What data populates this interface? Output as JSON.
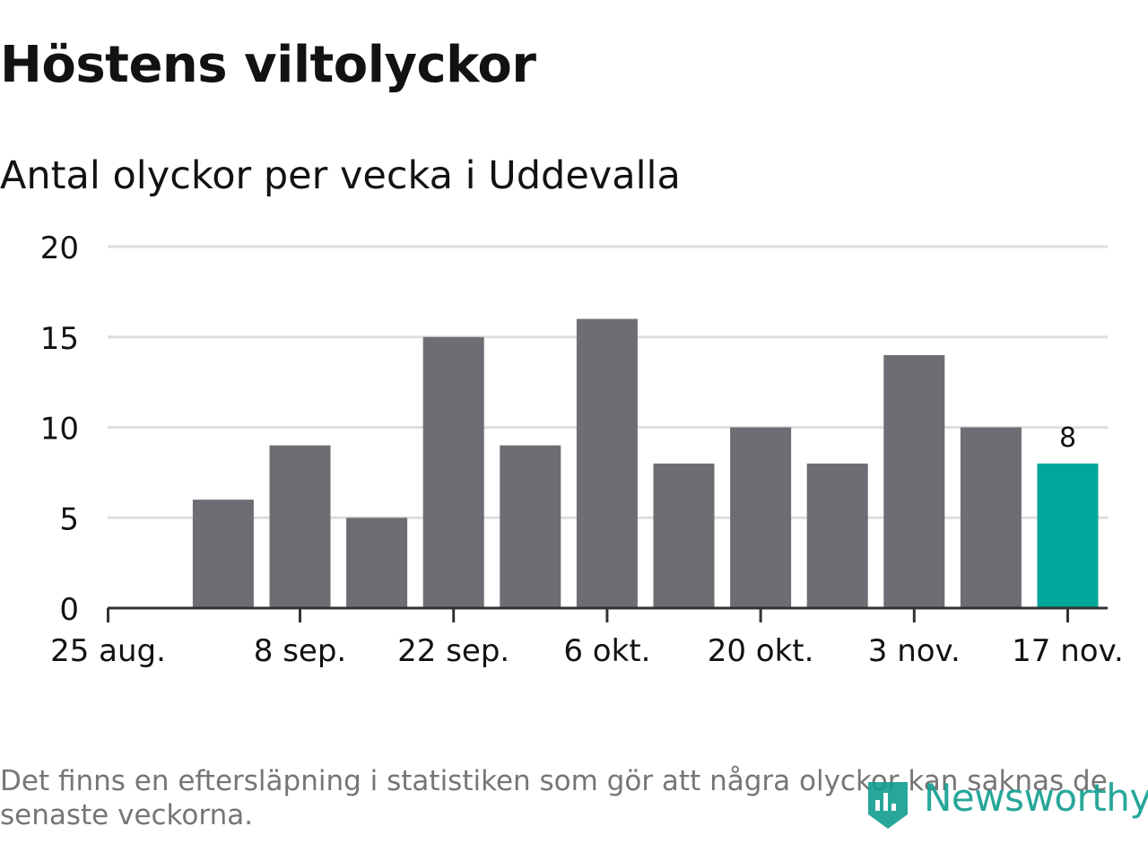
{
  "title": "Höstens viltolyckor",
  "subtitle": "Antal olyckor per vecka i Uddevalla",
  "chart_data": {
    "type": "bar",
    "categories": [
      "25 aug.",
      "1 sep.",
      "8 sep.",
      "15 sep.",
      "22 sep.",
      "29 sep.",
      "6 okt.",
      "13 okt.",
      "20 okt.",
      "27 okt.",
      "3 nov.",
      "10 nov.",
      "17 nov."
    ],
    "x_ticks": [
      "25 aug.",
      "8 sep.",
      "22 sep.",
      "6 okt.",
      "20 okt.",
      "3 nov.",
      "17 nov."
    ],
    "x_tick_indices": [
      0,
      2,
      4,
      6,
      8,
      10,
      12
    ],
    "bars": [
      {
        "category": "1 sep.",
        "value": 6
      },
      {
        "category": "8 sep.",
        "value": 9
      },
      {
        "category": "15 sep.",
        "value": 5
      },
      {
        "category": "22 sep.",
        "value": 15
      },
      {
        "category": "29 sep.",
        "value": 9
      },
      {
        "category": "6 okt.",
        "value": 16
      },
      {
        "category": "13 okt.",
        "value": 8
      },
      {
        "category": "20 okt.",
        "value": 10
      },
      {
        "category": "27 okt.",
        "value": 8
      },
      {
        "category": "3 nov.",
        "value": 14
      },
      {
        "category": "10 nov.",
        "value": 10
      },
      {
        "category": "17 nov.",
        "value": 8
      }
    ],
    "highlight_category": "17 nov.",
    "highlight_label": "8",
    "y_ticks": [
      0,
      5,
      10,
      15,
      20
    ],
    "ylim": [
      0,
      20
    ],
    "grid": true,
    "xlabel": "",
    "ylabel": ""
  },
  "colors": {
    "bar": "#6e6d73",
    "highlight": "#00a69a",
    "grid": "#dedede",
    "axis": "#333333",
    "text": "#121212",
    "note": "#767676",
    "brand": "#109e8f"
  },
  "footer": {
    "note": "Det finns en eftersläpning i statistiken som gör att några olyckor kan saknas de senaste veckorna.",
    "brand": "Newsworthy"
  }
}
